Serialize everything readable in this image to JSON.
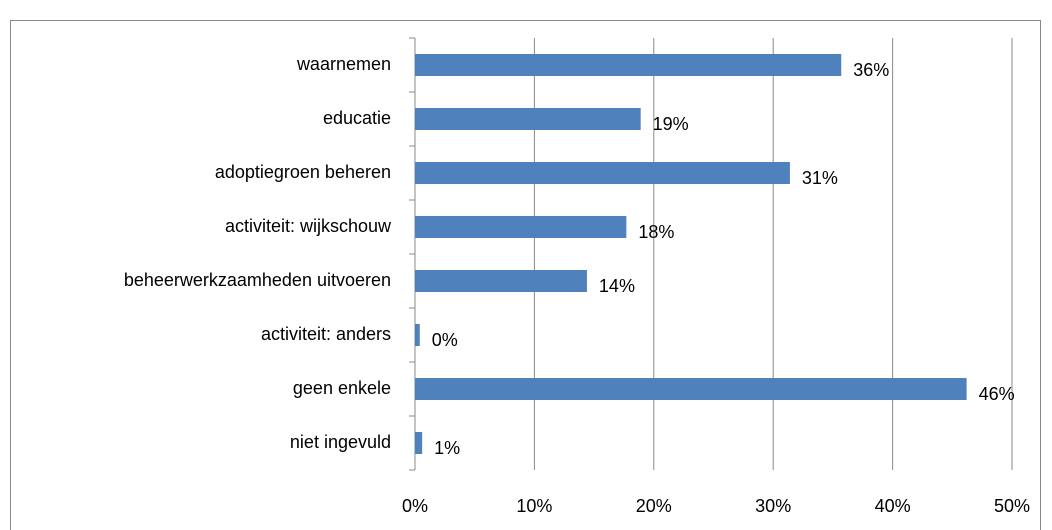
{
  "chart_data": {
    "type": "hbar",
    "categories": [
      "waarnemen",
      "educatie",
      "adoptiegroen beheren",
      "activiteit: wijkschouw",
      "beheerwerkzaamheden uitvoeren",
      "activiteit: anders",
      "geen enkele",
      "niet ingevuld"
    ],
    "values": [
      35.7,
      18.9,
      31.4,
      17.7,
      14.4,
      0.4,
      46.2,
      0.6
    ],
    "value_labels": [
      "36%",
      "19%",
      "31%",
      "18%",
      "14%",
      "0%",
      "46%",
      "1%"
    ],
    "color": "#4f81bd",
    "xlim": [
      0,
      50
    ],
    "xticks": [
      {
        "value": 0,
        "label": "0%"
      },
      {
        "value": 10,
        "label": "10%"
      },
      {
        "value": 20,
        "label": "20%"
      },
      {
        "value": 30,
        "label": "30%"
      },
      {
        "value": 40,
        "label": "40%"
      },
      {
        "value": 50,
        "label": "50%"
      }
    ],
    "grid": true
  }
}
